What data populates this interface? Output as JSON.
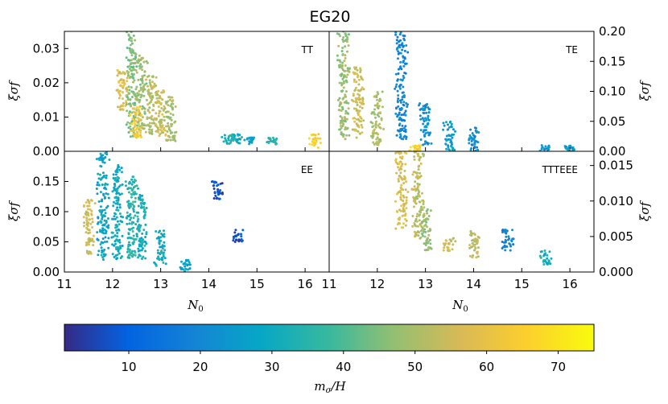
{
  "chart_data": {
    "type": "scatter",
    "title": "EG20",
    "colorbar": {
      "label": "m_σ/H",
      "range": [
        1,
        75
      ],
      "ticks": [
        "10",
        "20",
        "30",
        "40",
        "50",
        "60",
        "70"
      ],
      "colormap": "parula"
    },
    "x_axis": {
      "label": "N_0",
      "range": [
        11,
        16.5
      ],
      "ticks": [
        "11",
        "12",
        "13",
        "14",
        "15",
        "16"
      ]
    },
    "panels": [
      {
        "tag": "TT",
        "ylabel": "ξσf",
        "ylim": [
          0,
          0.035
        ],
        "y_ticks": [
          "0.00",
          "0.01",
          "0.02",
          "0.03"
        ],
        "y_side": "left",
        "clusters": [
          {
            "x": 12.4,
            "y_range": [
              0.004,
              0.035
            ],
            "m": 45
          },
          {
            "x": 12.2,
            "y_range": [
              0.012,
              0.024
            ],
            "m": 58
          },
          {
            "x": 12.6,
            "y_range": [
              0.006,
              0.028
            ],
            "m": 48
          },
          {
            "x": 12.8,
            "y_range": [
              0.005,
              0.022
            ],
            "m": 52
          },
          {
            "x": 13.0,
            "y_range": [
              0.004,
              0.018
            ],
            "m": 55
          },
          {
            "x": 13.2,
            "y_range": [
              0.003,
              0.016
            ],
            "m": 50
          },
          {
            "x": 12.5,
            "y_range": [
              0.004,
              0.013
            ],
            "m": 62
          },
          {
            "x": 14.4,
            "y_range": [
              0.002,
              0.005
            ],
            "m": 33
          },
          {
            "x": 14.6,
            "y_range": [
              0.002,
              0.005
            ],
            "m": 30
          },
          {
            "x": 14.85,
            "y_range": [
              0.002,
              0.004
            ],
            "m": 28
          },
          {
            "x": 15.3,
            "y_range": [
              0.002,
              0.004
            ],
            "m": 34
          },
          {
            "x": 16.2,
            "y_range": [
              0.001,
              0.005
            ],
            "m": 66
          }
        ]
      },
      {
        "tag": "TE",
        "ylabel": "ξσf",
        "ylim": [
          0,
          0.2
        ],
        "y_ticks": [
          "0.00",
          "0.05",
          "0.10",
          "0.15",
          "0.20"
        ],
        "y_side": "right",
        "clusters": [
          {
            "x": 11.3,
            "y_range": [
              0.02,
              0.2
            ],
            "m": 48
          },
          {
            "x": 11.6,
            "y_range": [
              0.02,
              0.14
            ],
            "m": 55
          },
          {
            "x": 12.0,
            "y_range": [
              0.01,
              0.1
            ],
            "m": 50
          },
          {
            "x": 12.5,
            "y_range": [
              0.02,
              0.2
            ],
            "m": 20
          },
          {
            "x": 13.0,
            "y_range": [
              0.01,
              0.08
            ],
            "m": 22
          },
          {
            "x": 13.5,
            "y_range": [
              0.0,
              0.05
            ],
            "m": 25
          },
          {
            "x": 14.0,
            "y_range": [
              0.0,
              0.04
            ],
            "m": 22
          },
          {
            "x": 15.5,
            "y_range": [
              0.0,
              0.01
            ],
            "m": 24
          },
          {
            "x": 16.0,
            "y_range": [
              0.0,
              0.01
            ],
            "m": 26
          },
          {
            "x": 12.8,
            "y_range": [
              0.0,
              0.01
            ],
            "m": 65
          }
        ]
      },
      {
        "tag": "EE",
        "ylabel": "ξσf",
        "ylim": [
          0,
          0.2
        ],
        "y_ticks": [
          "0.00",
          "0.05",
          "0.10",
          "0.15"
        ],
        "y_side": "left",
        "clusters": [
          {
            "x": 11.8,
            "y_range": [
              0.02,
              0.2
            ],
            "m": 28
          },
          {
            "x": 12.1,
            "y_range": [
              0.02,
              0.18
            ],
            "m": 30
          },
          {
            "x": 12.4,
            "y_range": [
              0.02,
              0.16
            ],
            "m": 35
          },
          {
            "x": 12.6,
            "y_range": [
              0.02,
              0.13
            ],
            "m": 32
          },
          {
            "x": 13.0,
            "y_range": [
              0.01,
              0.07
            ],
            "m": 30
          },
          {
            "x": 11.5,
            "y_range": [
              0.03,
              0.12
            ],
            "m": 55
          },
          {
            "x": 13.5,
            "y_range": [
              0.0,
              0.02
            ],
            "m": 27
          },
          {
            "x": 14.2,
            "y_range": [
              0.12,
              0.15
            ],
            "m": 6
          },
          {
            "x": 14.6,
            "y_range": [
              0.05,
              0.07
            ],
            "m": 6
          }
        ]
      },
      {
        "tag": "TTTEEE",
        "ylabel": "ξσf",
        "ylim": [
          0,
          0.017
        ],
        "y_ticks": [
          "0.000",
          "0.005",
          "0.010",
          "0.015"
        ],
        "y_side": "right",
        "clusters": [
          {
            "x": 12.5,
            "y_range": [
              0.006,
              0.017
            ],
            "m": 58
          },
          {
            "x": 12.85,
            "y_range": [
              0.005,
              0.017
            ],
            "m": 52
          },
          {
            "x": 13.0,
            "y_range": [
              0.003,
              0.009
            ],
            "m": 48
          },
          {
            "x": 13.5,
            "y_range": [
              0.003,
              0.005
            ],
            "m": 55
          },
          {
            "x": 14.0,
            "y_range": [
              0.002,
              0.006
            ],
            "m": 52
          },
          {
            "x": 14.7,
            "y_range": [
              0.003,
              0.006
            ],
            "m": 20
          },
          {
            "x": 15.5,
            "y_range": [
              0.001,
              0.003
            ],
            "m": 32
          }
        ]
      }
    ]
  }
}
